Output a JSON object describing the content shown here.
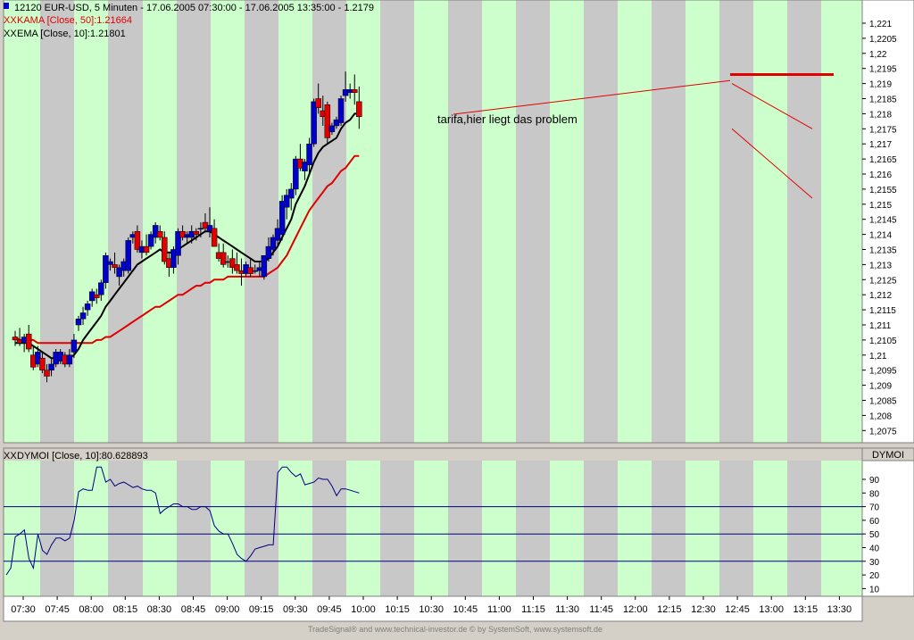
{
  "header": {
    "symbol_line": "12120  EUR-USD, 5 Minuten - 17.06.2005 07:30:00 - 17.06.2005 13:35:00 - 1.2179",
    "kama_line": "KAMA [Close, 50]:1.21664",
    "ema_line": "EMA [Close, 10]:1.21801",
    "dymoi_line": "DYMOI [Close, 10]:80.628893",
    "dymoi_label": "DYMOI"
  },
  "annotation": "tarifa,hier liegt das problem",
  "footer": "TradeSignal® and www.technical-investor.de © by SystemSoft, www.systemsoft.de",
  "colors": {
    "up": "#0000cc",
    "down": "#e00000",
    "kama": "#e00000",
    "ema": "#000000",
    "band_green": "#ccffcc",
    "band_gray": "#c8c8c8",
    "dymoi_line": "#000080"
  },
  "chart_data": [
    {
      "type": "candlestick",
      "y_ticks": [
        "1,221",
        "1,2205",
        "1,22",
        "1,2195",
        "1,219",
        "1,2185",
        "1,218",
        "1,2175",
        "1,217",
        "1,2165",
        "1,216",
        "1,2155",
        "1,215",
        "1,2145",
        "1,214",
        "1,2135",
        "1,213",
        "1,2125",
        "1,212",
        "1,2115",
        "1,211",
        "1,2105",
        "1,21",
        "1,2095",
        "1,209",
        "1,2085",
        "1,208",
        "1,2075"
      ],
      "x_ticks": [
        "07:30",
        "07:45",
        "08:00",
        "08:15",
        "08:30",
        "08:45",
        "09:00",
        "09:15",
        "09:30",
        "09:45",
        "10:00",
        "10:15",
        "10:30",
        "10:45",
        "11:00",
        "11:15",
        "11:30",
        "11:45",
        "12:00",
        "12:15",
        "12:30",
        "12:45",
        "13:00",
        "13:15",
        "13:30"
      ],
      "ylim": [
        1.2072,
        1.2212
      ],
      "candles": [
        [
          1.2106,
          1.2108,
          1.2103,
          1.2105
        ],
        [
          1.2105,
          1.2109,
          1.2103,
          1.2104
        ],
        [
          1.2104,
          1.2107,
          1.2101,
          1.2106
        ],
        [
          1.2107,
          1.211,
          1.2101,
          1.2102
        ],
        [
          1.21,
          1.2103,
          1.2095,
          1.2096
        ],
        [
          1.2097,
          1.2103,
          1.2096,
          1.2101
        ],
        [
          1.2099,
          1.2101,
          1.2094,
          1.2095
        ],
        [
          1.2095,
          1.2097,
          1.2091,
          1.2093
        ],
        [
          1.2095,
          1.2099,
          1.2093,
          1.2097
        ],
        [
          1.2097,
          1.2102,
          1.2096,
          1.2101
        ],
        [
          1.2098,
          1.2102,
          1.2097,
          1.2101
        ],
        [
          1.21,
          1.2101,
          1.2096,
          1.2097
        ],
        [
          1.2097,
          1.2102,
          1.2096,
          1.21
        ],
        [
          1.2101,
          1.2107,
          1.2099,
          1.2105
        ],
        [
          1.211,
          1.2113,
          1.2108,
          1.2112
        ],
        [
          1.2112,
          1.2116,
          1.211,
          1.2114
        ],
        [
          1.2115,
          1.2118,
          1.2113,
          1.2117
        ],
        [
          1.2118,
          1.2122,
          1.2116,
          1.2121
        ],
        [
          1.212,
          1.2122,
          1.2117,
          1.2119
        ],
        [
          1.212,
          1.2125,
          1.2118,
          1.2124
        ],
        [
          1.2124,
          1.2134,
          1.2122,
          1.2133
        ],
        [
          1.213,
          1.2132,
          1.2128,
          1.2131
        ],
        [
          1.213,
          1.2134,
          1.2127,
          1.2129
        ],
        [
          1.2126,
          1.213,
          1.2123,
          1.2129
        ],
        [
          1.2128,
          1.2132,
          1.2126,
          1.2131
        ],
        [
          1.2128,
          1.2139,
          1.2127,
          1.2138
        ],
        [
          1.2139,
          1.2141,
          1.2137,
          1.214
        ],
        [
          1.2141,
          1.2143,
          1.2134,
          1.2135
        ],
        [
          1.2134,
          1.2138,
          1.2132,
          1.2136
        ],
        [
          1.2136,
          1.214,
          1.2133,
          1.2134
        ],
        [
          1.2136,
          1.2141,
          1.2135,
          1.214
        ],
        [
          1.2139,
          1.2144,
          1.2137,
          1.2143
        ],
        [
          1.2141,
          1.2143,
          1.2138,
          1.2139
        ],
        [
          1.2139,
          1.2141,
          1.213,
          1.2131
        ],
        [
          1.2132,
          1.2134,
          1.2126,
          1.2129
        ],
        [
          1.2129,
          1.2136,
          1.2127,
          1.2135
        ],
        [
          1.2133,
          1.2142,
          1.213,
          1.2141
        ],
        [
          1.2141,
          1.2143,
          1.2138,
          1.2139
        ],
        [
          1.2139,
          1.2141,
          1.2137,
          1.214
        ],
        [
          1.2139,
          1.2143,
          1.2137,
          1.2141
        ],
        [
          1.2141,
          1.2142,
          1.2138,
          1.214
        ],
        [
          1.2142,
          1.2144,
          1.2139,
          1.2142
        ],
        [
          1.2144,
          1.2147,
          1.2141,
          1.2142
        ],
        [
          1.2141,
          1.2149,
          1.2139,
          1.2143
        ],
        [
          1.2142,
          1.2145,
          1.2136,
          1.2136
        ],
        [
          1.2134,
          1.2137,
          1.2131,
          1.2132
        ],
        [
          1.2134,
          1.2137,
          1.2129,
          1.213
        ],
        [
          1.2131,
          1.2133,
          1.2129,
          1.2131
        ],
        [
          1.2132,
          1.2135,
          1.2127,
          1.2129
        ],
        [
          1.213,
          1.2134,
          1.2127,
          1.2128
        ],
        [
          1.2128,
          1.2132,
          1.2123,
          1.2127
        ],
        [
          1.2127,
          1.2131,
          1.2126,
          1.213
        ],
        [
          1.2129,
          1.2132,
          1.2126,
          1.2127
        ],
        [
          1.2128,
          1.213,
          1.2127,
          1.2128
        ],
        [
          1.2128,
          1.2131,
          1.2126,
          1.2129
        ],
        [
          1.2126,
          1.2132,
          1.2125,
          1.2133
        ],
        [
          1.2132,
          1.2139,
          1.2131,
          1.2136
        ],
        [
          1.2135,
          1.214,
          1.2133,
          1.2139
        ],
        [
          1.2138,
          1.2145,
          1.2136,
          1.2142
        ],
        [
          1.214,
          1.2153,
          1.2138,
          1.2151
        ],
        [
          1.2149,
          1.2155,
          1.2145,
          1.2153
        ],
        [
          1.2152,
          1.2157,
          1.2148,
          1.2155
        ],
        [
          1.2155,
          1.2166,
          1.2153,
          1.2165
        ],
        [
          1.2165,
          1.217,
          1.2161,
          1.2162
        ],
        [
          1.2161,
          1.2165,
          1.2158,
          1.2164
        ],
        [
          1.2163,
          1.2172,
          1.216,
          1.217
        ],
        [
          1.217,
          1.2185,
          1.2169,
          1.2184
        ],
        [
          1.2185,
          1.219,
          1.218,
          1.2182
        ],
        [
          1.2181,
          1.2186,
          1.2176,
          1.2179
        ],
        [
          1.2183,
          1.2184,
          1.217,
          1.2172
        ],
        [
          1.2174,
          1.2177,
          1.2173,
          1.2176
        ],
        [
          1.2176,
          1.2179,
          1.2175,
          1.2178
        ],
        [
          1.2177,
          1.2186,
          1.2176,
          1.2185
        ],
        [
          1.2186,
          1.2194,
          1.2184,
          1.2188
        ],
        [
          1.2187,
          1.219,
          1.2185,
          1.2188
        ],
        [
          1.2188,
          1.2193,
          1.2183,
          1.2187
        ],
        [
          1.2184,
          1.2189,
          1.2175,
          1.2179
        ]
      ],
      "kama": [
        [
          1.2106,
          1.2105,
          1.2105,
          1.2105,
          1.2105,
          1.2104,
          1.2104,
          1.2104,
          1.2104,
          1.2104,
          1.2104,
          1.2104,
          1.2104,
          1.2104,
          1.2104,
          1.2104,
          1.2104,
          1.2104,
          1.2105,
          1.2105,
          1.2106,
          1.2106,
          1.2107,
          1.2108,
          1.2109,
          1.211,
          1.2111,
          1.2112,
          1.2113,
          1.2114,
          1.2115,
          1.2116,
          1.2116,
          1.2117,
          1.2118,
          1.2119,
          1.212,
          1.212,
          1.2121,
          1.2122,
          1.2123,
          1.2123,
          1.2124,
          1.2124,
          1.2125,
          1.2125,
          1.2125,
          1.2126,
          1.2126,
          1.2126,
          1.2126,
          1.2126,
          1.2126,
          1.2126,
          1.2126,
          1.2126,
          1.2127,
          1.2128,
          1.2129,
          1.2131,
          1.2133,
          1.2136,
          1.2139,
          1.2142,
          1.2145,
          1.2148,
          1.215,
          1.2152,
          1.2154,
          1.2156,
          1.2157,
          1.2159,
          1.2161,
          1.2162,
          1.2164,
          1.2166,
          1.2166
        ]
      ],
      "ema": [
        [
          1.2104,
          1.2104,
          1.2104,
          1.2104,
          1.2103,
          1.2102,
          1.2101,
          1.21,
          1.2099,
          1.2099,
          1.2099,
          1.2099,
          1.2099,
          1.21,
          1.2102,
          1.2105,
          1.2107,
          1.2109,
          1.2111,
          1.2113,
          1.2116,
          1.2118,
          1.212,
          1.2122,
          1.2124,
          1.2126,
          1.2128,
          1.213,
          1.2131,
          1.2132,
          1.2133,
          1.2134,
          1.2135,
          1.2134,
          1.2134,
          1.2134,
          1.2135,
          1.2136,
          1.2137,
          1.2138,
          1.2139,
          1.214,
          1.2141,
          1.2141,
          1.214,
          1.2139,
          1.2138,
          1.2137,
          1.2136,
          1.2135,
          1.2134,
          1.2133,
          1.2132,
          1.2131,
          1.2131,
          1.2131,
          1.2132,
          1.2134,
          1.2136,
          1.2139,
          1.2142,
          1.2145,
          1.215,
          1.2153,
          1.2156,
          1.216,
          1.2164,
          1.2167,
          1.2169,
          1.217,
          1.2171,
          1.2172,
          1.2175,
          1.2177,
          1.2178,
          1.218,
          1.218
        ]
      ],
      "annotations": {
        "resistance_level": 1.2193
      }
    },
    {
      "type": "line",
      "title": "DYMOI [Close, 10]:80.628893",
      "y_ticks": [
        "90",
        "80",
        "70",
        "60",
        "50",
        "40",
        "30",
        "20",
        "10"
      ],
      "ylim": [
        3,
        101
      ],
      "hlines": [
        70,
        50,
        30
      ],
      "values": [
        20,
        25,
        48,
        50,
        53,
        32,
        25,
        50,
        38,
        35,
        42,
        47,
        47,
        45,
        47,
        60,
        81,
        83,
        82,
        82,
        99,
        99,
        88,
        90,
        85,
        87,
        88,
        86,
        84,
        85,
        83,
        82,
        82,
        80,
        65,
        68,
        70,
        72,
        72,
        70,
        70,
        68,
        68,
        70,
        70,
        67,
        56,
        52,
        50,
        50,
        43,
        35,
        32,
        30,
        34,
        39,
        40,
        41,
        42,
        42,
        95,
        99,
        99,
        95,
        92,
        94,
        86,
        87,
        88,
        91,
        90,
        90,
        85,
        78,
        83,
        83,
        82,
        81,
        80
      ]
    }
  ]
}
